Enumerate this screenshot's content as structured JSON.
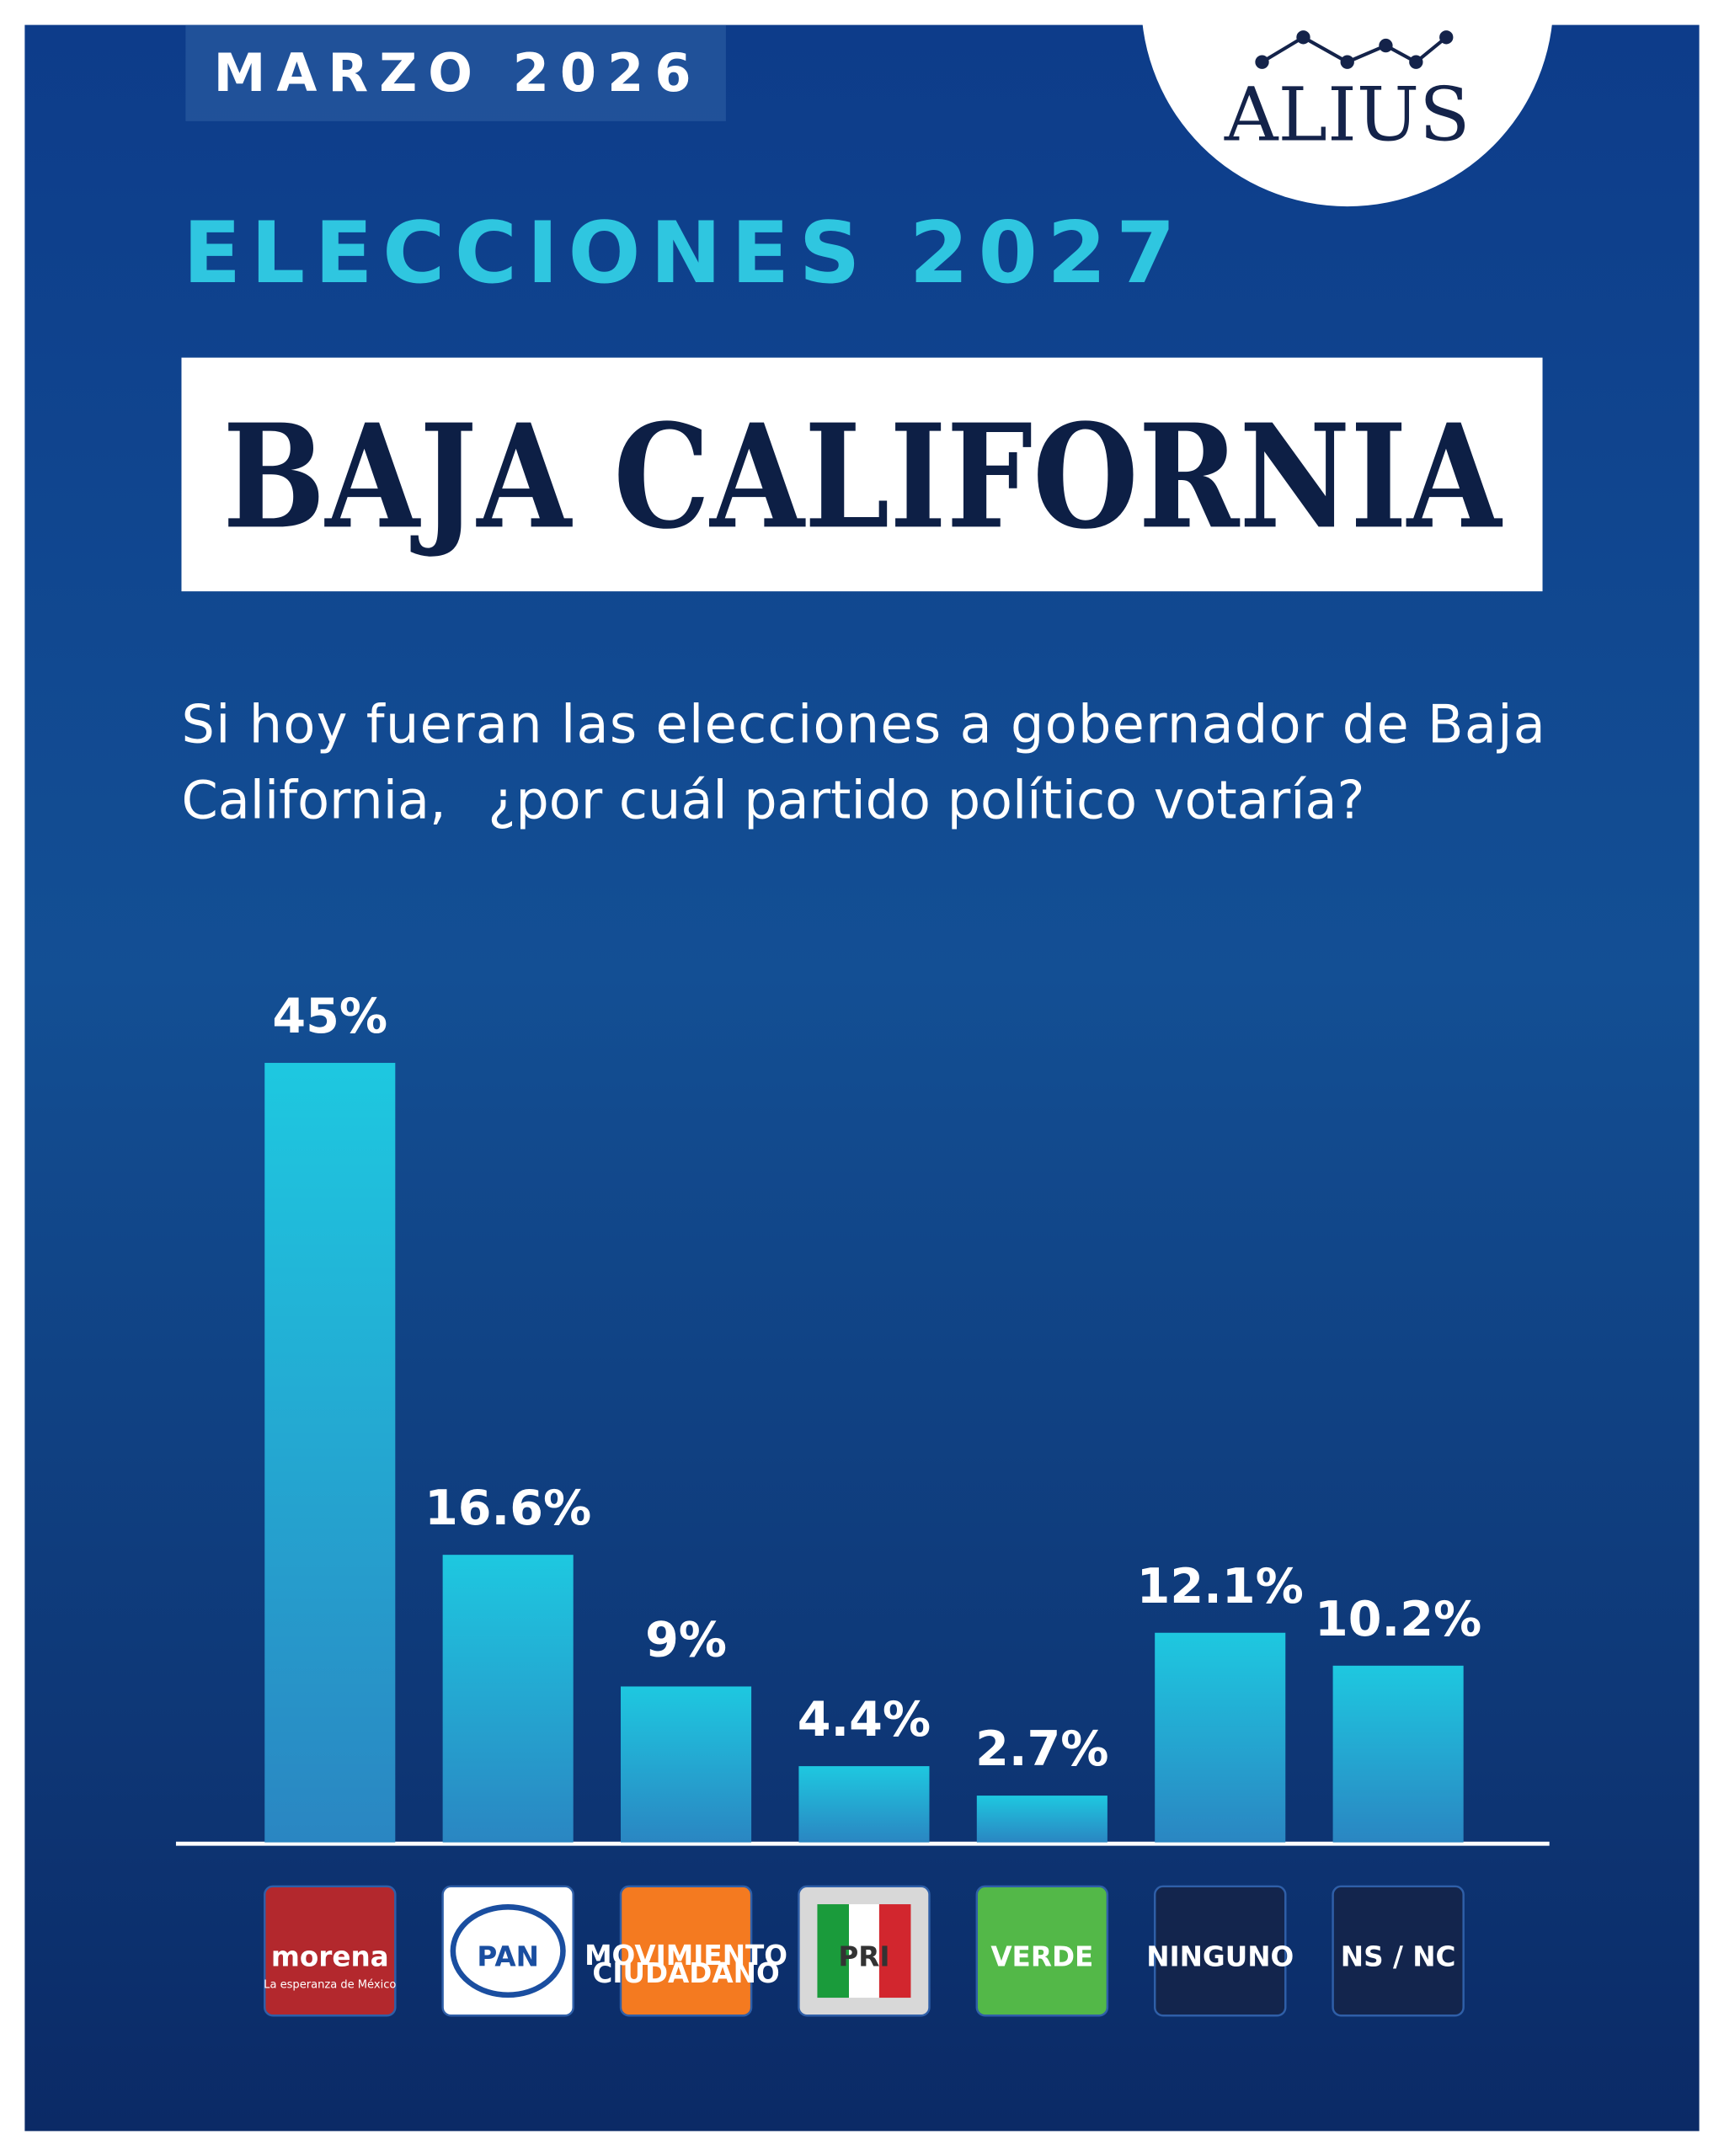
{
  "header": {
    "date": "MARZO 2026",
    "brand": "ALIUS"
  },
  "chart_data": {
    "type": "bar",
    "supertitle": "ELECCIONES 2027",
    "title": "BAJA CALIFORNIA",
    "subtitle_lines": [
      "Si hoy fueran las elecciones a gobernador de Baja",
      "California,"
    ],
    "subtitle_highlight": "¿por cuál partido político votaría?",
    "categories": [
      "morena",
      "PAN",
      "MOVIMIENTO CIUDADANO",
      "PRI",
      "VERDE",
      "NINGUNO",
      "NS / NC"
    ],
    "category_taglines": [
      "La esperanza de México",
      null,
      null,
      null,
      null,
      null,
      null
    ],
    "values": [
      45,
      16.6,
      9,
      4.4,
      2.7,
      12.1,
      10.2
    ],
    "value_labels": [
      "45%",
      "16.6%",
      "9%",
      "4.4%",
      "2.7%",
      "12.1%",
      "10.2%"
    ],
    "color": "#1ec8e0",
    "highlight_color": "#d9e36a",
    "logo_colors": [
      "#b3282d",
      "#ffffff",
      "#f47a20",
      "#d8d8d8",
      "#53b848",
      "#13254d",
      "#13254d"
    ],
    "logo_text_colors": [
      "#ffffff",
      "#1a4ea0",
      "#ffffff",
      "#333333",
      "#ffffff",
      "#ffffff",
      "#ffffff"
    ]
  }
}
